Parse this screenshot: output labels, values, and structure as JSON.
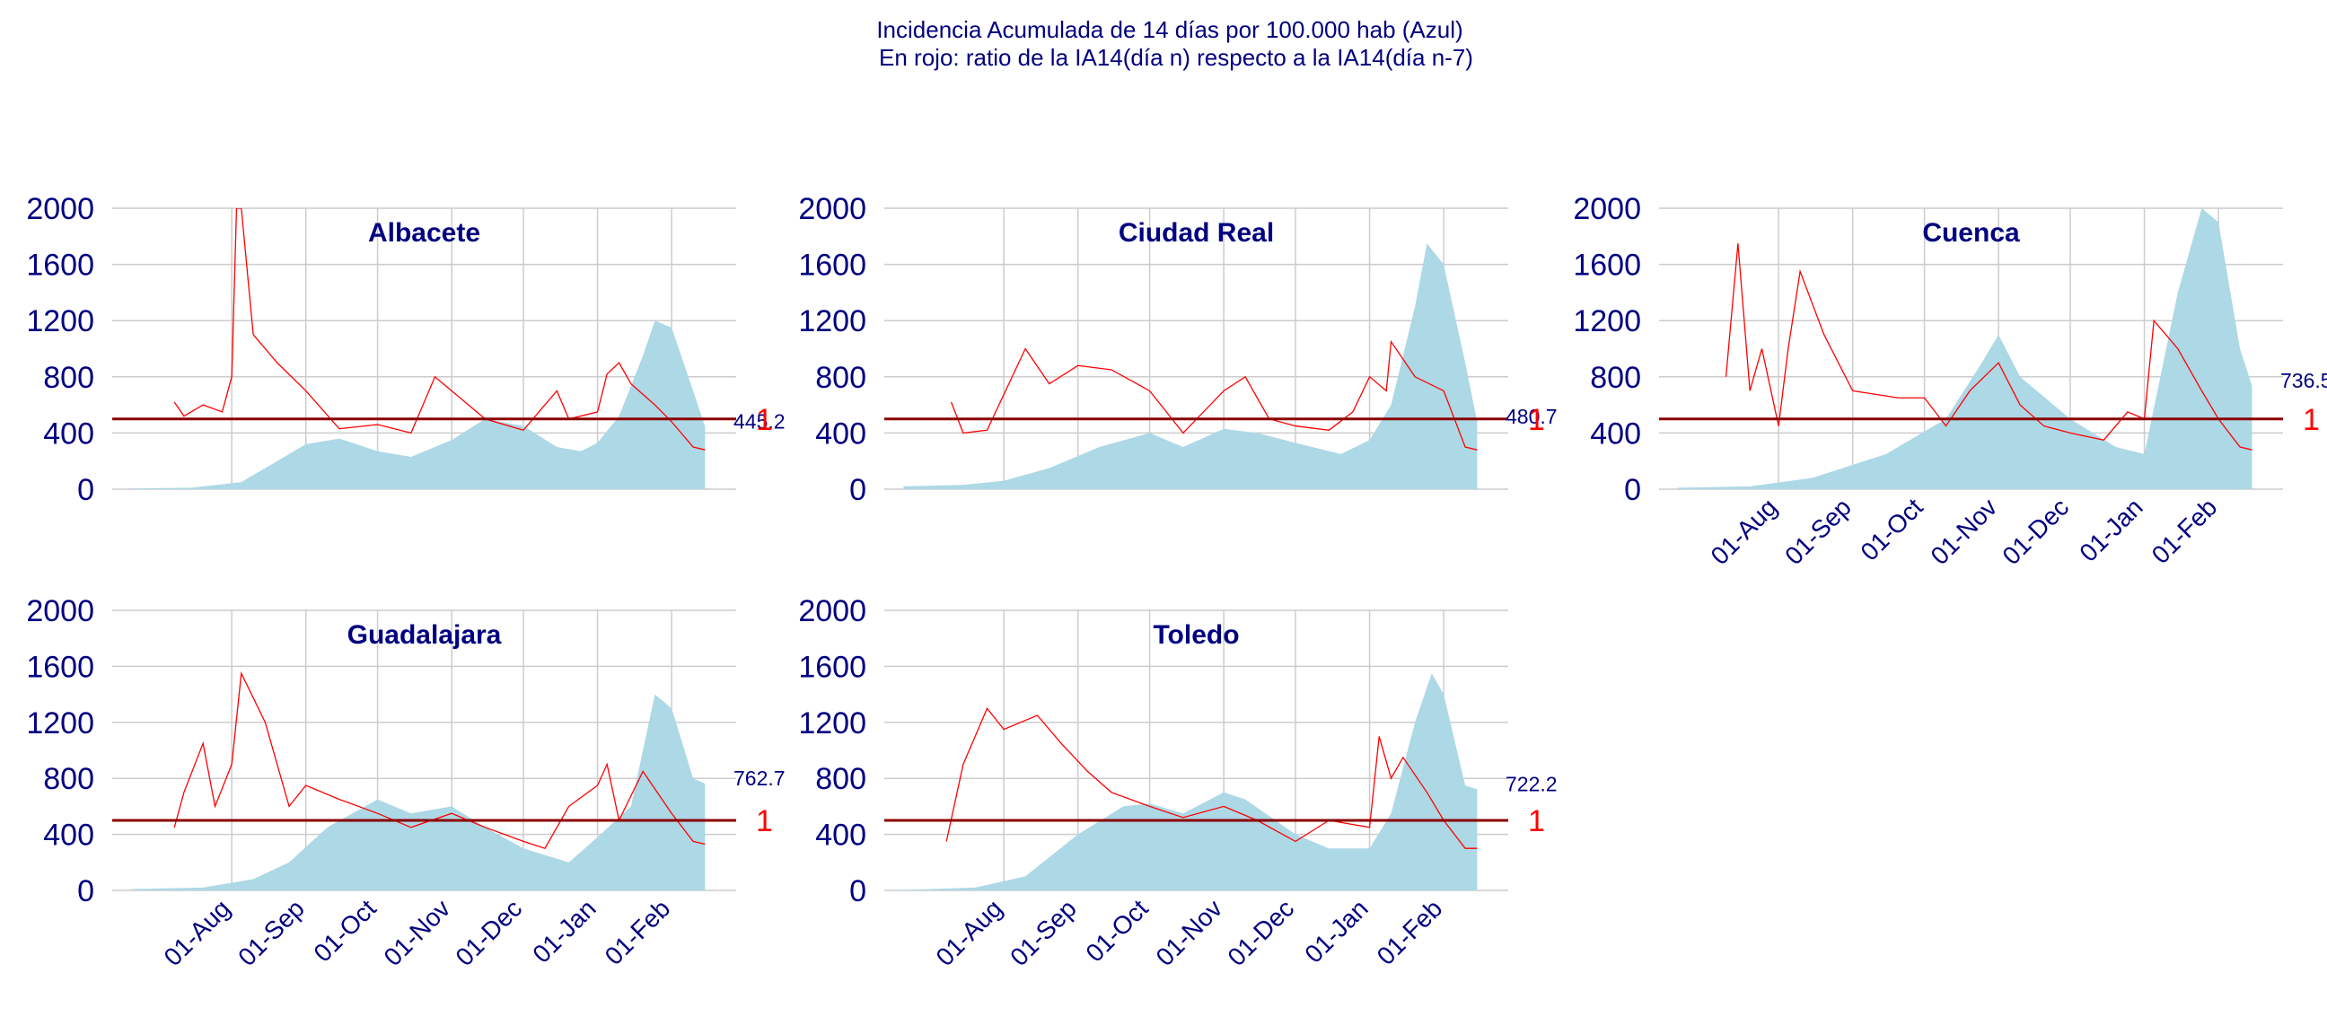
{
  "title_line1": "Incidencia Acumulada de 14 días por 100.000 hab (Azul)",
  "title_line2": "En rojo: ratio de la IA14(día n) respecto a la IA14(día n-7)",
  "colors": {
    "incidence_fill": "#add8e6",
    "ratio_line": "#ff0000",
    "reference_line": "#8b0000",
    "text": "#000080",
    "grid": "#cccccc"
  },
  "chart_data": [
    {
      "type": "area",
      "title": "Albacete",
      "x_ticks": [
        "01-Aug",
        "01-Sep",
        "01-Oct",
        "01-Nov",
        "01-Dec",
        "01-Jan",
        "01-Feb"
      ],
      "x_tick_labels_shown": false,
      "xlim": [
        "2020-06-12",
        "2021-02-28"
      ],
      "ylim": [
        0,
        2000
      ],
      "y_ticks": [
        0,
        400,
        800,
        1200,
        1600,
        2000
      ],
      "incidence": {
        "x": [
          "2020-06-20",
          "2020-07-15",
          "2020-08-05",
          "2020-08-20",
          "2020-09-01",
          "2020-09-15",
          "2020-10-01",
          "2020-10-15",
          "2020-11-01",
          "2020-11-15",
          "2020-12-01",
          "2020-12-15",
          "2020-12-25",
          "2021-01-01",
          "2021-01-10",
          "2021-01-20",
          "2021-01-25",
          "2021-02-01",
          "2021-02-10",
          "2021-02-15"
        ],
        "y": [
          5,
          10,
          50,
          200,
          320,
          360,
          270,
          230,
          350,
          500,
          450,
          300,
          270,
          330,
          520,
          950,
          1200,
          1150,
          700,
          445
        ]
      },
      "ratio_scaled": {
        "x": [
          "2020-07-08",
          "2020-07-12",
          "2020-07-20",
          "2020-07-28",
          "2020-08-01",
          "2020-08-03",
          "2020-08-05",
          "2020-08-10",
          "2020-08-20",
          "2020-09-01",
          "2020-09-15",
          "2020-10-01",
          "2020-10-15",
          "2020-10-20",
          "2020-10-25",
          "2020-11-01",
          "2020-11-15",
          "2020-12-01",
          "2020-12-10",
          "2020-12-15",
          "2020-12-20",
          "2021-01-01",
          "2021-01-05",
          "2021-01-10",
          "2021-01-15",
          "2021-01-25",
          "2021-02-01",
          "2021-02-10",
          "2021-02-15"
        ],
        "y": [
          620,
          520,
          600,
          550,
          800,
          2000,
          2000,
          1100,
          900,
          700,
          430,
          460,
          400,
          600,
          800,
          700,
          500,
          420,
          600,
          700,
          500,
          550,
          820,
          900,
          750,
          600,
          480,
          300,
          280
        ]
      },
      "reference_line": 500,
      "reference_label": "1",
      "last_value_label": "445.2"
    },
    {
      "type": "area",
      "title": "Ciudad Real",
      "x_ticks": [
        "01-Aug",
        "01-Sep",
        "01-Oct",
        "01-Nov",
        "01-Dec",
        "01-Jan",
        "01-Feb"
      ],
      "x_tick_labels_shown": false,
      "xlim": [
        "2020-06-12",
        "2021-02-28"
      ],
      "ylim": [
        0,
        2000
      ],
      "y_ticks": [
        0,
        400,
        800,
        1200,
        1600,
        2000
      ],
      "incidence": {
        "x": [
          "2020-06-20",
          "2020-07-15",
          "2020-08-01",
          "2020-08-20",
          "2020-09-10",
          "2020-10-01",
          "2020-10-15",
          "2020-11-01",
          "2020-11-15",
          "2020-12-01",
          "2020-12-20",
          "2021-01-01",
          "2021-01-10",
          "2021-01-20",
          "2021-01-25",
          "2021-02-01",
          "2021-02-10",
          "2021-02-15"
        ],
        "y": [
          20,
          30,
          60,
          150,
          300,
          400,
          300,
          430,
          400,
          330,
          250,
          350,
          600,
          1300,
          1750,
          1600,
          900,
          480
        ]
      },
      "ratio_scaled": {
        "x": [
          "2020-07-10",
          "2020-07-15",
          "2020-07-25",
          "2020-08-10",
          "2020-08-20",
          "2020-09-01",
          "2020-09-15",
          "2020-10-01",
          "2020-10-15",
          "2020-11-01",
          "2020-11-10",
          "2020-11-20",
          "2020-12-01",
          "2020-12-15",
          "2020-12-25",
          "2021-01-01",
          "2021-01-08",
          "2021-01-10",
          "2021-01-20",
          "2021-02-01",
          "2021-02-10",
          "2021-02-15"
        ],
        "y": [
          620,
          400,
          420,
          1000,
          750,
          880,
          850,
          700,
          400,
          700,
          800,
          500,
          450,
          420,
          550,
          800,
          700,
          1050,
          800,
          700,
          300,
          280
        ]
      },
      "reference_line": 500,
      "reference_label": "1",
      "last_value_label": "480.7"
    },
    {
      "type": "area",
      "title": "Cuenca",
      "x_ticks": [
        "01-Aug",
        "01-Sep",
        "01-Oct",
        "01-Nov",
        "01-Dec",
        "01-Jan",
        "01-Feb"
      ],
      "x_tick_labels_shown": true,
      "xlim": [
        "2020-06-12",
        "2021-02-28"
      ],
      "ylim": [
        0,
        2000
      ],
      "y_ticks": [
        0,
        400,
        800,
        1200,
        1600,
        2000
      ],
      "incidence": {
        "x": [
          "2020-06-20",
          "2020-07-20",
          "2020-08-15",
          "2020-09-15",
          "2020-10-10",
          "2020-10-25",
          "2020-11-01",
          "2020-11-10",
          "2020-12-01",
          "2020-12-20",
          "2021-01-01",
          "2021-01-15",
          "2021-01-25",
          "2021-02-01",
          "2021-02-10",
          "2021-02-15"
        ],
        "y": [
          10,
          20,
          80,
          250,
          500,
          900,
          1100,
          800,
          500,
          300,
          250,
          1400,
          2000,
          1900,
          1000,
          736
        ]
      },
      "ratio_scaled": {
        "x": [
          "2020-07-10",
          "2020-07-15",
          "2020-07-20",
          "2020-07-25",
          "2020-08-01",
          "2020-08-05",
          "2020-08-10",
          "2020-08-20",
          "2020-09-01",
          "2020-09-20",
          "2020-10-01",
          "2020-10-10",
          "2020-10-20",
          "2020-11-01",
          "2020-11-10",
          "2020-11-20",
          "2020-12-01",
          "2020-12-15",
          "2020-12-25",
          "2021-01-01",
          "2021-01-05",
          "2021-01-15",
          "2021-01-25",
          "2021-02-01",
          "2021-02-10",
          "2021-02-15"
        ],
        "y": [
          800,
          1750,
          700,
          1000,
          450,
          1000,
          1550,
          1100,
          700,
          650,
          650,
          450,
          700,
          900,
          600,
          450,
          400,
          350,
          550,
          500,
          1200,
          1000,
          700,
          500,
          300,
          280
        ]
      },
      "reference_line": 500,
      "reference_label": "1",
      "last_value_label": "736.5"
    },
    {
      "type": "area",
      "title": "Guadalajara",
      "x_ticks": [
        "01-Aug",
        "01-Sep",
        "01-Oct",
        "01-Nov",
        "01-Dec",
        "01-Jan",
        "01-Feb"
      ],
      "x_tick_labels_shown": true,
      "xlim": [
        "2020-06-12",
        "2021-02-28"
      ],
      "ylim": [
        0,
        2000
      ],
      "y_ticks": [
        0,
        400,
        800,
        1200,
        1600,
        2000
      ],
      "incidence": {
        "x": [
          "2020-06-20",
          "2020-07-20",
          "2020-08-10",
          "2020-08-25",
          "2020-09-10",
          "2020-10-01",
          "2020-10-15",
          "2020-11-01",
          "2020-11-15",
          "2020-12-01",
          "2020-12-20",
          "2021-01-01",
          "2021-01-15",
          "2021-01-25",
          "2021-02-01",
          "2021-02-10",
          "2021-02-15"
        ],
        "y": [
          10,
          20,
          80,
          200,
          450,
          650,
          550,
          600,
          450,
          300,
          200,
          380,
          600,
          1400,
          1300,
          800,
          762
        ]
      },
      "ratio_scaled": {
        "x": [
          "2020-07-08",
          "2020-07-12",
          "2020-07-20",
          "2020-07-25",
          "2020-08-01",
          "2020-08-05",
          "2020-08-15",
          "2020-08-25",
          "2020-09-01",
          "2020-09-15",
          "2020-10-01",
          "2020-10-15",
          "2020-11-01",
          "2020-11-15",
          "2020-12-01",
          "2020-12-10",
          "2020-12-20",
          "2021-01-01",
          "2021-01-05",
          "2021-01-10",
          "2021-01-20",
          "2021-02-01",
          "2021-02-10",
          "2021-02-15"
        ],
        "y": [
          450,
          700,
          1050,
          600,
          900,
          1550,
          1200,
          600,
          750,
          650,
          550,
          450,
          550,
          450,
          350,
          300,
          600,
          750,
          900,
          500,
          850,
          550,
          350,
          330
        ]
      },
      "reference_line": 500,
      "reference_label": "1",
      "last_value_label": "762.7"
    },
    {
      "type": "area",
      "title": "Toledo",
      "x_ticks": [
        "01-Aug",
        "01-Sep",
        "01-Oct",
        "01-Nov",
        "01-Dec",
        "01-Jan",
        "01-Feb"
      ],
      "x_tick_labels_shown": true,
      "xlim": [
        "2020-06-12",
        "2021-02-28"
      ],
      "ylim": [
        0,
        2000
      ],
      "y_ticks": [
        0,
        400,
        800,
        1200,
        1600,
        2000
      ],
      "incidence": {
        "x": [
          "2020-06-15",
          "2020-07-20",
          "2020-08-10",
          "2020-09-01",
          "2020-09-20",
          "2020-10-01",
          "2020-10-15",
          "2020-11-01",
          "2020-11-10",
          "2020-12-01",
          "2020-12-15",
          "2021-01-01",
          "2021-01-10",
          "2021-01-20",
          "2021-01-27",
          "2021-02-01",
          "2021-02-10",
          "2021-02-15"
        ],
        "y": [
          0,
          20,
          100,
          400,
          600,
          620,
          550,
          700,
          650,
          400,
          300,
          300,
          550,
          1200,
          1550,
          1400,
          750,
          722
        ]
      },
      "ratio_scaled": {
        "x": [
          "2020-07-08",
          "2020-07-15",
          "2020-07-25",
          "2020-08-01",
          "2020-08-15",
          "2020-08-25",
          "2020-09-05",
          "2020-09-15",
          "2020-10-01",
          "2020-10-15",
          "2020-11-01",
          "2020-11-15",
          "2020-12-01",
          "2020-12-15",
          "2021-01-01",
          "2021-01-05",
          "2021-01-10",
          "2021-01-15",
          "2021-01-25",
          "2021-02-01",
          "2021-02-10",
          "2021-02-15"
        ],
        "y": [
          350,
          900,
          1300,
          1150,
          1250,
          1050,
          850,
          700,
          600,
          520,
          600,
          500,
          350,
          500,
          450,
          1100,
          800,
          950,
          700,
          500,
          300,
          300
        ]
      },
      "reference_line": 500,
      "reference_label": "1",
      "last_value_label": "722.2"
    }
  ]
}
